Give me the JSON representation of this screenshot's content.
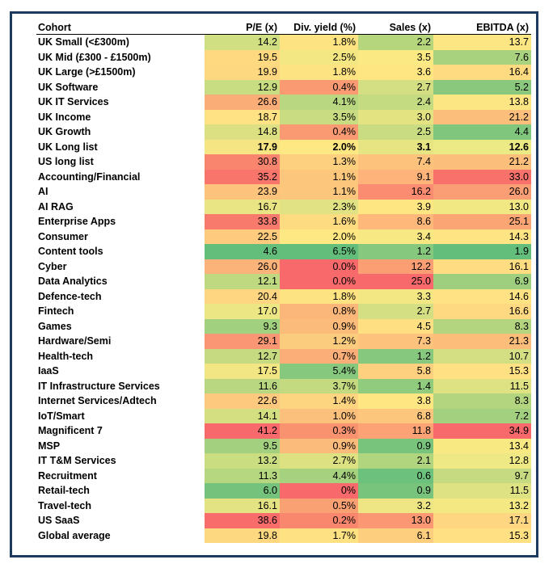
{
  "table": {
    "headers": [
      "Cohort",
      "P/E (x)",
      "Div. yield (%)",
      "Sales (x)",
      "EBITDA (x)"
    ],
    "rows": [
      {
        "name": " UK Small (<£300m)",
        "cells": [
          {
            "v": "14.2",
            "c": "#d0df82"
          },
          {
            "v": "1.8%",
            "c": "#fee382"
          },
          {
            "v": "2.2",
            "c": "#b6d67e"
          },
          {
            "v": "13.7",
            "c": "#fbe683"
          }
        ]
      },
      {
        "name": "UK Mid (£300 - £1500m)",
        "cells": [
          {
            "v": "19.5",
            "c": "#fed980"
          },
          {
            "v": "2.5%",
            "c": "#f3e783"
          },
          {
            "v": "3.5",
            "c": "#fbe983"
          },
          {
            "v": "7.6",
            "c": "#a9d27f"
          }
        ]
      },
      {
        "name": "UK Large (>£1500m)",
        "cells": [
          {
            "v": "19.9",
            "c": "#fed880"
          },
          {
            "v": "1.8%",
            "c": "#fee382"
          },
          {
            "v": "3.6",
            "c": "#fee783"
          },
          {
            "v": "16.4",
            "c": "#fedb81"
          }
        ]
      },
      {
        "name": "UK Software",
        "cells": [
          {
            "v": "12.9",
            "c": "#c8dc81"
          },
          {
            "v": "0.4%",
            "c": "#fa9a73"
          },
          {
            "v": "2.7",
            "c": "#d3df82"
          },
          {
            "v": "5.2",
            "c": "#8ac97d"
          }
        ]
      },
      {
        "name": "UK IT Services",
        "cells": [
          {
            "v": "26.6",
            "c": "#fbad78"
          },
          {
            "v": "4.1%",
            "c": "#b8d780"
          },
          {
            "v": "2.4",
            "c": "#c4db81"
          },
          {
            "v": "13.8",
            "c": "#fbe683"
          }
        ]
      },
      {
        "name": "UK Income",
        "cells": [
          {
            "v": "18.7",
            "c": "#ffe283"
          },
          {
            "v": "3.5%",
            "c": "#c9dc81"
          },
          {
            "v": "3.0",
            "c": "#e4e382"
          },
          {
            "v": "21.2",
            "c": "#fcbe7b"
          }
        ]
      },
      {
        "name": "UK Growth",
        "cells": [
          {
            "v": "14.8",
            "c": "#dce082"
          },
          {
            "v": "0.4%",
            "c": "#fa9a73"
          },
          {
            "v": "2.5",
            "c": "#c9dc81"
          },
          {
            "v": "4.4",
            "c": "#80c67c"
          }
        ]
      },
      {
        "name": "UK Long list",
        "cells": [
          {
            "v": "17.9",
            "c": "#f5e683"
          },
          {
            "v": "2.0%",
            "c": "#fee883"
          },
          {
            "v": "3.1",
            "c": "#e7e483"
          },
          {
            "v": "12.6",
            "c": "#ecea84"
          }
        ]
      },
      {
        "name": "US long list",
        "cells": [
          {
            "v": "30.8",
            "c": "#f9856f"
          },
          {
            "v": "1.3%",
            "c": "#fcd07f"
          },
          {
            "v": "7.4",
            "c": "#fdc27c"
          },
          {
            "v": "21.2",
            "c": "#fcbe7b"
          }
        ]
      },
      {
        "name": "Accounting/Financial",
        "cells": [
          {
            "v": "35.2",
            "c": "#f8756b"
          },
          {
            "v": "1.1%",
            "c": "#fcc77d"
          },
          {
            "v": "9.1",
            "c": "#fdb379"
          },
          {
            "v": "33.0",
            "c": "#f8726b"
          }
        ]
      },
      {
        "name": "AI",
        "cells": [
          {
            "v": "23.9",
            "c": "#fdc27c"
          },
          {
            "v": "1.1%",
            "c": "#fcc77d"
          },
          {
            "v": "16.2",
            "c": "#fb8c71"
          },
          {
            "v": "26.0",
            "c": "#fa9f75"
          }
        ]
      },
      {
        "name": "AI RAG",
        "cells": [
          {
            "v": "16.7",
            "c": "#eae584"
          },
          {
            "v": "2.3%",
            "c": "#e0e283"
          },
          {
            "v": "3.9",
            "c": "#fee783"
          },
          {
            "v": "13.0",
            "c": "#f1e883"
          }
        ]
      },
      {
        "name": "Enterprise Apps",
        "cells": [
          {
            "v": "33.8",
            "c": "#f87a6c"
          },
          {
            "v": "1.6%",
            "c": "#fddb81"
          },
          {
            "v": "8.6",
            "c": "#fdb87a"
          },
          {
            "v": "25.1",
            "c": "#fba575"
          }
        ]
      },
      {
        "name": "Consumer",
        "cells": [
          {
            "v": "22.5",
            "c": "#fdca7e"
          },
          {
            "v": "2.0%",
            "c": "#fee883"
          },
          {
            "v": "3.4",
            "c": "#f8e883"
          },
          {
            "v": "14.3",
            "c": "#ffe483"
          }
        ]
      },
      {
        "name": "Content tools",
        "cells": [
          {
            "v": "4.6",
            "c": "#63be7b"
          },
          {
            "v": "6.5%",
            "c": "#63be7b"
          },
          {
            "v": "1.2",
            "c": "#86c87e"
          },
          {
            "v": "1.9",
            "c": "#63be7b"
          }
        ]
      },
      {
        "name": "Cyber",
        "cells": [
          {
            "v": "26.0",
            "c": "#fcb379"
          },
          {
            "v": "0.0%",
            "c": "#f8696b"
          },
          {
            "v": "12.2",
            "c": "#fb9e74"
          },
          {
            "v": "16.1",
            "c": "#fedc81"
          }
        ]
      },
      {
        "name": "Data Analytics",
        "cells": [
          {
            "v": "12.1",
            "c": "#bfd981"
          },
          {
            "v": "0.0%",
            "c": "#f8696b"
          },
          {
            "v": "25.0",
            "c": "#f8696b"
          },
          {
            "v": "6.9",
            "c": "#9ecf7e"
          }
        ]
      },
      {
        "name": "Defence-tech",
        "cells": [
          {
            "v": "20.4",
            "c": "#fed580"
          },
          {
            "v": "1.8%",
            "c": "#fee382"
          },
          {
            "v": "3.3",
            "c": "#f3e783"
          },
          {
            "v": "14.6",
            "c": "#fee283"
          }
        ]
      },
      {
        "name": "Fintech",
        "cells": [
          {
            "v": "17.0",
            "c": "#ede684"
          },
          {
            "v": "0.8%",
            "c": "#fbb679"
          },
          {
            "v": "2.7",
            "c": "#d3df82"
          },
          {
            "v": "16.6",
            "c": "#fed981"
          }
        ]
      },
      {
        "name": "Games",
        "cells": [
          {
            "v": "9.3",
            "c": "#a1d07f"
          },
          {
            "v": "0.9%",
            "c": "#fbbb7a"
          },
          {
            "v": "4.5",
            "c": "#fee083"
          },
          {
            "v": "8.3",
            "c": "#b3d580"
          }
        ]
      },
      {
        "name": "Hardware/Semi",
        "cells": [
          {
            "v": "29.1",
            "c": "#fa9673"
          },
          {
            "v": "1.2%",
            "c": "#fccc7e"
          },
          {
            "v": "7.3",
            "c": "#fdc27c"
          },
          {
            "v": "21.3",
            "c": "#fcbd7b"
          }
        ]
      },
      {
        "name": "Health-tech",
        "cells": [
          {
            "v": "12.7",
            "c": "#c6db81"
          },
          {
            "v": "0.7%",
            "c": "#fbae77"
          },
          {
            "v": "1.2",
            "c": "#86c87e"
          },
          {
            "v": "10.7",
            "c": "#d3df82"
          }
        ]
      },
      {
        "name": "IaaS",
        "cells": [
          {
            "v": "17.5",
            "c": "#f1e683"
          },
          {
            "v": "5.4%",
            "c": "#86c87e"
          },
          {
            "v": "5.8",
            "c": "#fdd07f"
          },
          {
            "v": "15.3",
            "c": "#ffe082"
          }
        ]
      },
      {
        "name": "IT Infrastructure Services",
        "cells": [
          {
            "v": "11.6",
            "c": "#b9d780"
          },
          {
            "v": "3.7%",
            "c": "#c3da81"
          },
          {
            "v": "1.4",
            "c": "#90cb7e"
          },
          {
            "v": "11.5",
            "c": "#dee283"
          }
        ]
      },
      {
        "name": "Internet Services/Adtech",
        "cells": [
          {
            "v": "22.6",
            "c": "#fdc97e"
          },
          {
            "v": "1.4%",
            "c": "#fdd47f"
          },
          {
            "v": "3.8",
            "c": "#fee783"
          },
          {
            "v": "8.3",
            "c": "#b3d580"
          }
        ]
      },
      {
        "name": "IoT/Smart",
        "cells": [
          {
            "v": "14.1",
            "c": "#d4df82"
          },
          {
            "v": "1.0%",
            "c": "#fbc07b"
          },
          {
            "v": "6.8",
            "c": "#fdc67d"
          },
          {
            "v": "7.2",
            "c": "#a2d07f"
          }
        ]
      },
      {
        "name": "Magnificent 7",
        "cells": [
          {
            "v": "41.2",
            "c": "#f8696b"
          },
          {
            "v": "0.3%",
            "c": "#f9936f"
          },
          {
            "v": "11.8",
            "c": "#fca275"
          },
          {
            "v": "34.9",
            "c": "#f8696b"
          }
        ]
      },
      {
        "name": "MSP",
        "cells": [
          {
            "v": "9.5",
            "c": "#a3d07f"
          },
          {
            "v": "0.9%",
            "c": "#fbbb7a"
          },
          {
            "v": "0.9",
            "c": "#79c47d"
          },
          {
            "v": "13.4",
            "c": "#f8e983"
          }
        ]
      },
      {
        "name": "IT T&M Services",
        "cells": [
          {
            "v": "13.2",
            "c": "#cbdd81"
          },
          {
            "v": "2.7%",
            "c": "#ddE182"
          },
          {
            "v": "2.1",
            "c": "#b1d47f"
          },
          {
            "v": "12.8",
            "c": "#eee984"
          }
        ]
      },
      {
        "name": "Recruitment",
        "cells": [
          {
            "v": "11.3",
            "c": "#b6d680"
          },
          {
            "v": "4.4%",
            "c": "#a6d17f"
          },
          {
            "v": "0.6",
            "c": "#6cc17c"
          },
          {
            "v": "9.7",
            "c": "#c6db81"
          }
        ]
      },
      {
        "name": "Retail-tech",
        "cells": [
          {
            "v": "6.0",
            "c": "#74c27c"
          },
          {
            "v": "0%",
            "c": "#f8696b"
          },
          {
            "v": "0.9",
            "c": "#79c47d"
          },
          {
            "v": "11.5",
            "c": "#dee283"
          }
        ]
      },
      {
        "name": "Travel-tech",
        "cells": [
          {
            "v": "16.1",
            "c": "#e4e383"
          },
          {
            "v": "0.5%",
            "c": "#faa174"
          },
          {
            "v": "3.2",
            "c": "#eee584"
          },
          {
            "v": "13.2",
            "c": "#f4e883"
          }
        ]
      },
      {
        "name": "US SaaS",
        "cells": [
          {
            "v": "38.6",
            "c": "#f86c6b"
          },
          {
            "v": "0.2%",
            "c": "#f9876e"
          },
          {
            "v": "13.0",
            "c": "#fb9873"
          },
          {
            "v": "17.1",
            "c": "#fed681"
          }
        ]
      },
      {
        "name": "Global average",
        "cells": [
          {
            "v": "19.8",
            "c": "#fed880"
          },
          {
            "v": "1.7%",
            "c": "#fde182"
          },
          {
            "v": "6.1",
            "c": "#fdce7e"
          },
          {
            "v": "15.3",
            "c": "#ffe082"
          }
        ]
      }
    ],
    "bold_rows": [
      7
    ]
  }
}
